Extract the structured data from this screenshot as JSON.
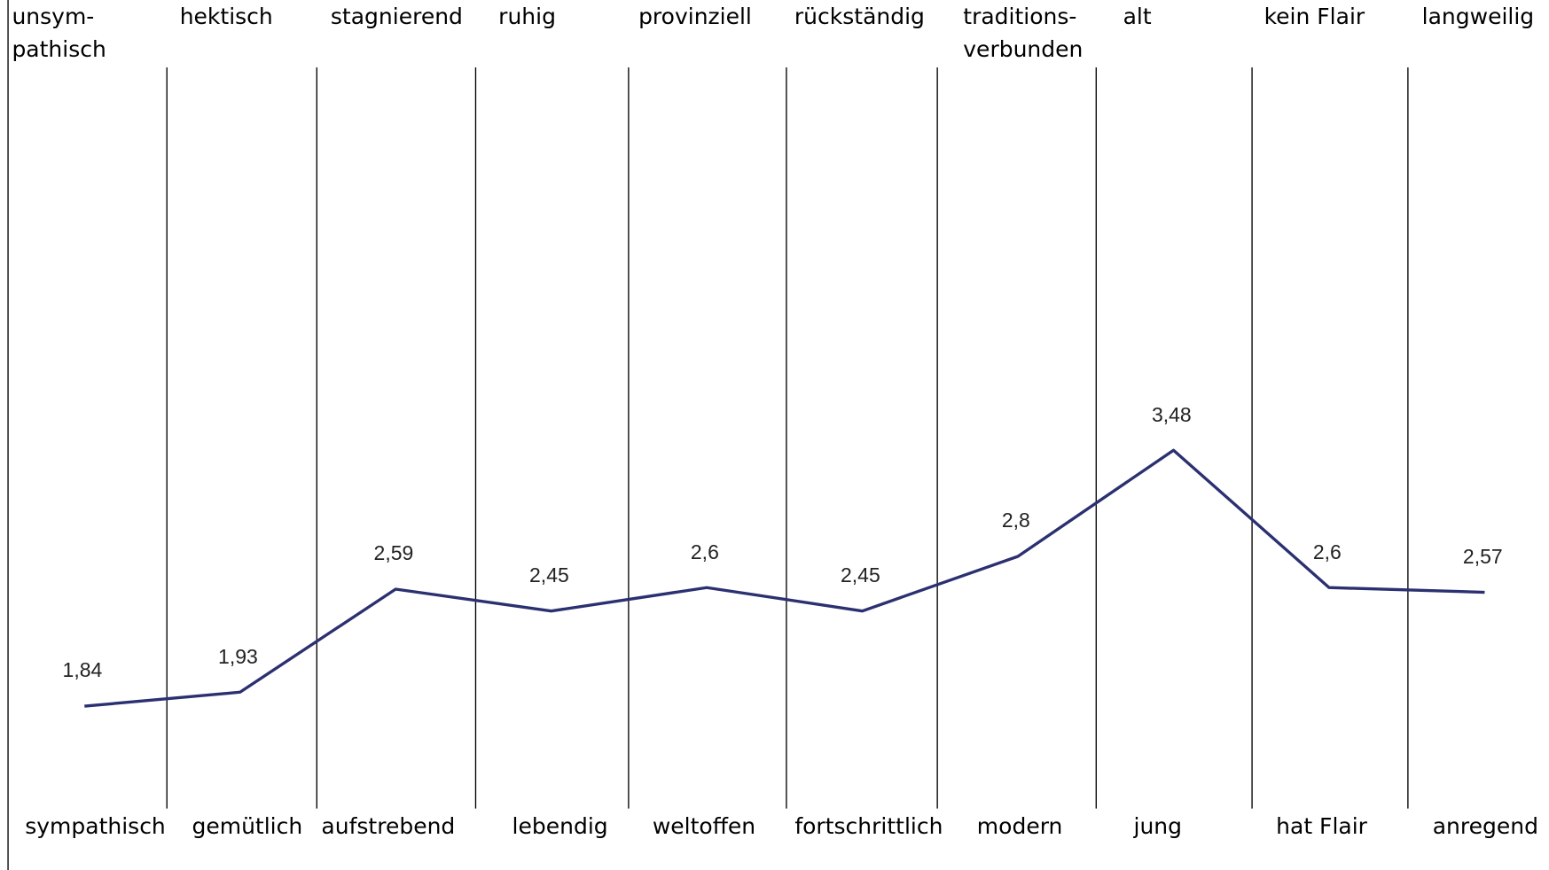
{
  "chart_data": {
    "type": "line",
    "top_labels": [
      "unsym-\npathisch",
      "hektisch",
      "stagnierend",
      "ruhig",
      "provinziell",
      "rückständig",
      "traditions-\nverbunden",
      "alt",
      "kein Flair",
      "langweilig"
    ],
    "categories": [
      "sympathisch",
      "gemütlich",
      "aufstrebend",
      "lebendig",
      "weltoffen",
      "fortschrittlich",
      "modern",
      "jung",
      "hat Flair",
      "anregend"
    ],
    "series": [
      {
        "color": "#2b3070",
        "values": [
          1.84,
          1.93,
          2.59,
          2.45,
          2.6,
          2.45,
          2.8,
          3.48,
          2.6,
          2.57
        ],
        "value_labels": [
          "1,84",
          "1,93",
          "2,59",
          "2,45",
          "2,6",
          "2,45",
          "2,8",
          "3,48",
          "2,6",
          "2,57"
        ]
      }
    ],
    "ylim": [
      1,
      6
    ]
  }
}
